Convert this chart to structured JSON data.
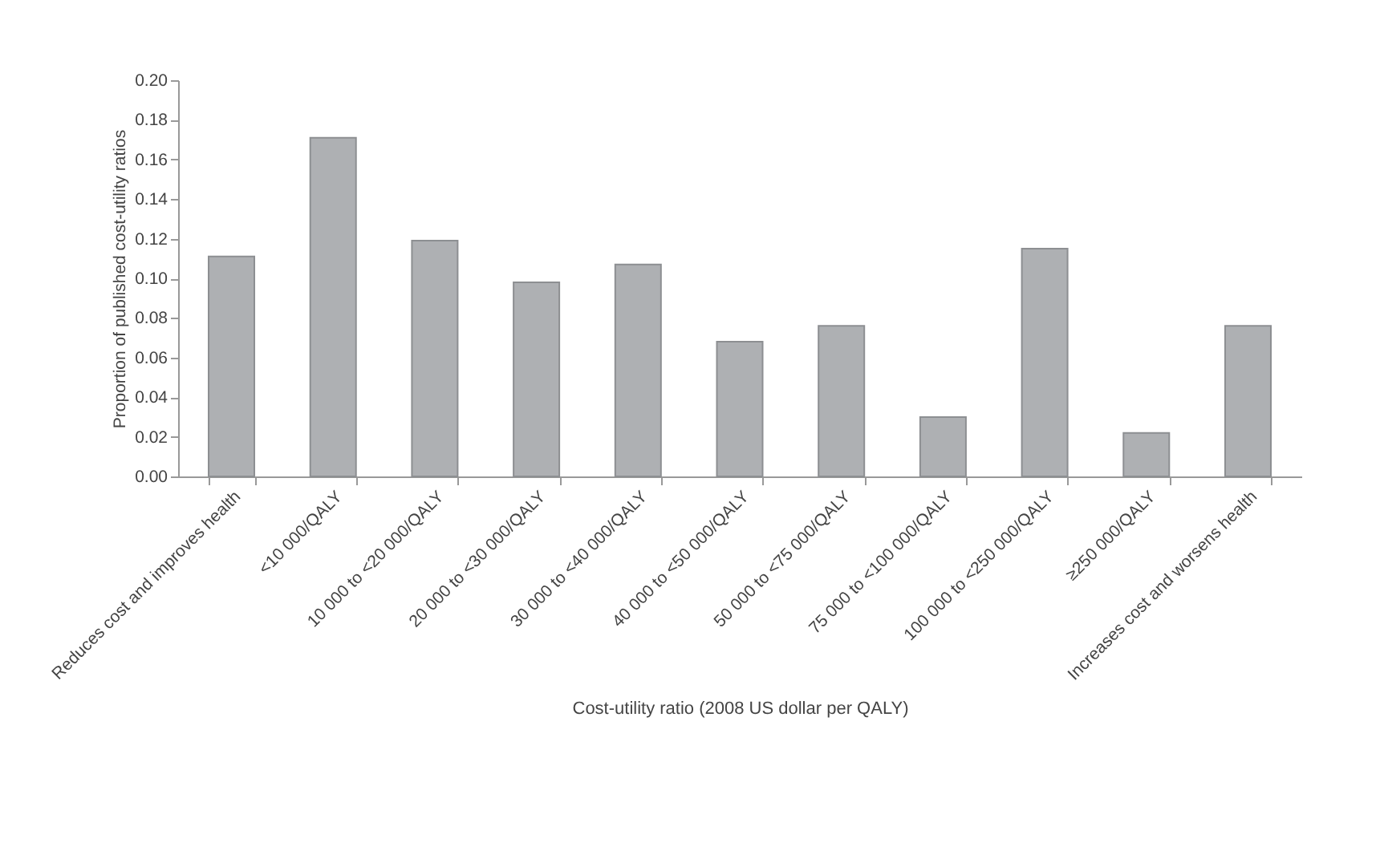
{
  "chart_data": {
    "type": "bar",
    "xlabel": "Cost-utility ratio (2008 US dollar per QALY)",
    "ylabel": "Proportion of published cost-utility ratios",
    "categories": [
      "Reduces cost and improves health",
      "<10 000/QALY",
      "10 000 to <20 000/QALY",
      "20 000 to <30 000/QALY",
      "30 000 to <40 000/QALY",
      "40 000 to <50 000/QALY",
      "50 000 to <75 000/QALY",
      "75 000 to <100 000/QALY",
      "100 000 to <250 000/QALY",
      "≥250 000/QALY",
      "Increases cost and worsens health"
    ],
    "values": [
      0.111,
      0.171,
      0.119,
      0.098,
      0.107,
      0.068,
      0.076,
      0.03,
      0.115,
      0.022,
      0.076
    ],
    "color": "#aeb0b3",
    "ylim": [
      0,
      0.2
    ],
    "yticks": [
      {
        "value": 0,
        "label": "0.00"
      },
      {
        "value": 0.02,
        "label": "0.02"
      },
      {
        "value": 0.04,
        "label": "0.04"
      },
      {
        "value": 0.06,
        "label": "0.06"
      },
      {
        "value": 0.08,
        "label": "0.08"
      },
      {
        "value": 0.1,
        "label": "0.10"
      },
      {
        "value": 0.12,
        "label": "0.12"
      },
      {
        "value": 0.14,
        "label": "0.14"
      },
      {
        "value": 0.16,
        "label": "0.16"
      },
      {
        "value": 0.18,
        "label": "0.18"
      },
      {
        "value": 0.2,
        "label": "0.20"
      }
    ],
    "grid": false
  }
}
